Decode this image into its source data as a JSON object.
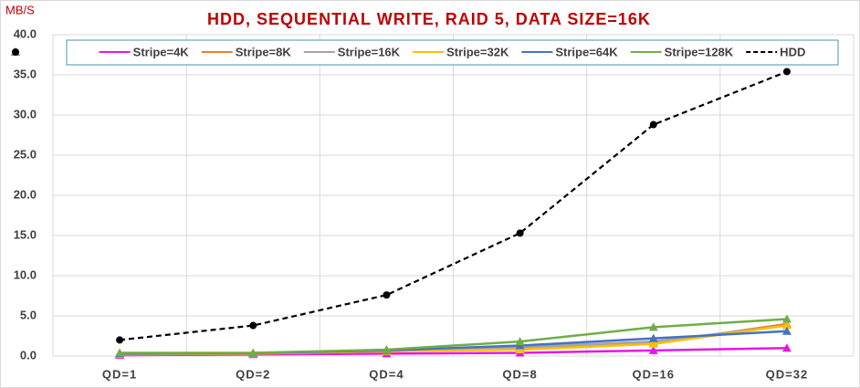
{
  "chart_data": {
    "type": "line",
    "title": "HDD, SEQUENTIAL WRITE, RAID 5, DATA SIZE=16K",
    "y_label": "MB/S",
    "categories": [
      "QD=1",
      "QD=2",
      "QD=4",
      "QD=8",
      "QD=16",
      "QD=32"
    ],
    "series": [
      {
        "name": "Stripe=4K",
        "color": "#e815e8",
        "marker": "triangle",
        "dash": false,
        "values": [
          0.1,
          0.2,
          0.3,
          0.4,
          0.7,
          1.0
        ]
      },
      {
        "name": "Stripe=8K",
        "color": "#ed7d31",
        "marker": "triangle",
        "dash": false,
        "values": [
          0.2,
          0.3,
          0.6,
          0.9,
          1.6,
          4.0
        ]
      },
      {
        "name": "Stripe=16K",
        "color": "#a5a5a5",
        "marker": "triangle",
        "dash": false,
        "values": [
          0.3,
          0.35,
          0.7,
          1.1,
          1.8,
          3.8
        ]
      },
      {
        "name": "Stripe=32K",
        "color": "#ffc000",
        "marker": "triangle",
        "dash": false,
        "values": [
          0.2,
          0.3,
          0.6,
          0.8,
          1.5,
          3.8
        ]
      },
      {
        "name": "Stripe=64K",
        "color": "#4472c4",
        "marker": "triangle",
        "dash": false,
        "values": [
          0.3,
          0.35,
          0.7,
          1.3,
          2.2,
          3.1
        ]
      },
      {
        "name": "Stripe=128K",
        "color": "#70ad47",
        "marker": "triangle",
        "dash": false,
        "values": [
          0.4,
          0.4,
          0.8,
          1.8,
          3.6,
          4.6
        ]
      },
      {
        "name": "HDD",
        "color": "#000000",
        "marker": "circle",
        "dash": true,
        "values": [
          2.0,
          3.8,
          7.6,
          15.3,
          28.8,
          35.4
        ]
      }
    ],
    "ylim": [
      0,
      40
    ],
    "yticks": [
      {
        "value": 0,
        "label": "0.0"
      },
      {
        "value": 5,
        "label": "5.0"
      },
      {
        "value": 10,
        "label": "10.0"
      },
      {
        "value": 15,
        "label": "15.0"
      },
      {
        "value": 20,
        "label": "20.0"
      },
      {
        "value": 25,
        "label": "25.0"
      },
      {
        "value": 30,
        "label": "30.0"
      },
      {
        "value": 35,
        "label": "35.0"
      },
      {
        "value": 40,
        "label": "40.0"
      }
    ],
    "grid": true,
    "legend": "top"
  }
}
